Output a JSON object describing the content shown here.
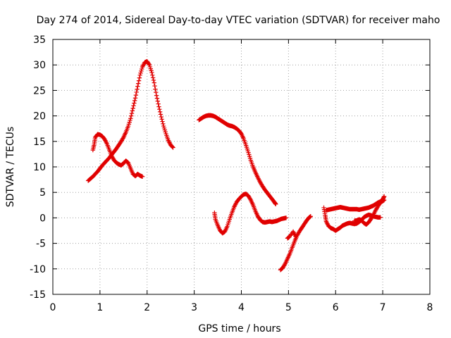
{
  "chart_data": {
    "type": "scatter",
    "title": "Day 274 of 2014, Sidereal Day-to-day VTEC variation (SDTVAR) for receiver maho",
    "xlabel": "GPS time / hours",
    "ylabel": "SDTVAR / TECUs",
    "xlim": [
      0,
      8
    ],
    "ylim": [
      -15,
      35
    ],
    "xticks": [
      0,
      1,
      2,
      3,
      4,
      5,
      6,
      7,
      8
    ],
    "yticks": [
      -15,
      -10,
      -5,
      0,
      5,
      10,
      15,
      20,
      25,
      30,
      35
    ],
    "x_tick_labels": [
      "0",
      "1",
      "2",
      "3",
      "4",
      "5",
      "6",
      "7",
      "8"
    ],
    "y_tick_labels": [
      "-15",
      "-10",
      "-5",
      "0",
      "5",
      "10",
      "15",
      "20",
      "25",
      "30",
      "35"
    ],
    "grid": true,
    "marker": "+",
    "marker_color": "#e00000",
    "series": [
      {
        "segments": [
          [
            [
              0.75,
              7.3
            ],
            [
              0.8,
              7.7
            ],
            [
              0.85,
              8.1
            ],
            [
              0.9,
              8.6
            ],
            [
              0.95,
              9.1
            ],
            [
              1.0,
              9.7
            ],
            [
              1.05,
              10.3
            ],
            [
              1.1,
              10.8
            ],
            [
              1.15,
              11.3
            ],
            [
              1.2,
              11.8
            ],
            [
              1.25,
              12.4
            ],
            [
              1.3,
              13.0
            ],
            [
              1.35,
              13.6
            ],
            [
              1.4,
              14.3
            ],
            [
              1.45,
              15.0
            ],
            [
              1.5,
              15.8
            ],
            [
              1.55,
              16.8
            ],
            [
              1.6,
              18.0
            ],
            [
              1.65,
              19.5
            ],
            [
              1.7,
              21.5
            ],
            [
              1.75,
              23.5
            ],
            [
              1.8,
              25.8
            ],
            [
              1.85,
              28.0
            ],
            [
              1.9,
              29.6
            ],
            [
              1.95,
              30.5
            ],
            [
              2.0,
              30.7
            ],
            [
              2.05,
              30.0
            ],
            [
              2.1,
              28.5
            ],
            [
              2.15,
              26.5
            ],
            [
              2.2,
              24.0
            ],
            [
              2.25,
              21.8
            ],
            [
              2.3,
              19.8
            ],
            [
              2.35,
              18.0
            ],
            [
              2.4,
              16.5
            ],
            [
              2.45,
              15.2
            ],
            [
              2.5,
              14.3
            ],
            [
              2.55,
              13.8
            ]
          ],
          [
            [
              0.85,
              13.3
            ],
            [
              0.88,
              14.5
            ],
            [
              0.9,
              15.8
            ],
            [
              0.95,
              16.4
            ],
            [
              1.0,
              16.3
            ],
            [
              1.05,
              16.0
            ],
            [
              1.1,
              15.4
            ],
            [
              1.15,
              14.5
            ],
            [
              1.2,
              13.3
            ],
            [
              1.25,
              12.1
            ],
            [
              1.3,
              11.3
            ],
            [
              1.35,
              10.8
            ],
            [
              1.4,
              10.5
            ],
            [
              1.45,
              10.3
            ],
            [
              1.5,
              10.7
            ],
            [
              1.55,
              11.2
            ],
            [
              1.6,
              10.8
            ],
            [
              1.65,
              9.7
            ],
            [
              1.7,
              8.6
            ],
            [
              1.75,
              8.2
            ],
            [
              1.8,
              8.6
            ],
            [
              1.85,
              8.3
            ],
            [
              1.9,
              8.1
            ]
          ],
          [
            [
              3.1,
              19.2
            ],
            [
              3.15,
              19.5
            ],
            [
              3.2,
              19.8
            ],
            [
              3.25,
              20.0
            ],
            [
              3.3,
              20.1
            ],
            [
              3.35,
              20.1
            ],
            [
              3.4,
              20.0
            ],
            [
              3.45,
              19.8
            ],
            [
              3.5,
              19.5
            ],
            [
              3.55,
              19.2
            ],
            [
              3.6,
              18.9
            ],
            [
              3.65,
              18.6
            ],
            [
              3.7,
              18.3
            ],
            [
              3.75,
              18.1
            ],
            [
              3.8,
              18.0
            ],
            [
              3.85,
              17.8
            ],
            [
              3.9,
              17.5
            ],
            [
              3.95,
              17.1
            ],
            [
              4.0,
              16.5
            ],
            [
              4.05,
              15.5
            ],
            [
              4.1,
              14.2
            ],
            [
              4.15,
              12.8
            ],
            [
              4.2,
              11.3
            ],
            [
              4.25,
              10.0
            ],
            [
              4.3,
              8.9
            ],
            [
              4.35,
              7.9
            ],
            [
              4.4,
              7.0
            ],
            [
              4.45,
              6.2
            ],
            [
              4.5,
              5.5
            ],
            [
              4.55,
              4.9
            ],
            [
              4.6,
              4.3
            ],
            [
              4.65,
              3.7
            ],
            [
              4.7,
              3.1
            ],
            [
              4.73,
              2.7
            ]
          ],
          [
            [
              3.43,
              1.0
            ],
            [
              3.45,
              -0.3
            ],
            [
              3.5,
              -1.5
            ],
            [
              3.55,
              -2.5
            ],
            [
              3.6,
              -3.0
            ],
            [
              3.65,
              -2.7
            ],
            [
              3.7,
              -1.7
            ],
            [
              3.75,
              -0.3
            ],
            [
              3.8,
              1.0
            ],
            [
              3.85,
              2.2
            ],
            [
              3.9,
              3.1
            ],
            [
              3.95,
              3.7
            ],
            [
              4.0,
              4.2
            ],
            [
              4.05,
              4.6
            ],
            [
              4.1,
              4.7
            ],
            [
              4.15,
              4.3
            ],
            [
              4.2,
              3.5
            ],
            [
              4.25,
              2.5
            ],
            [
              4.3,
              1.3
            ],
            [
              4.35,
              0.3
            ],
            [
              4.4,
              -0.4
            ],
            [
              4.45,
              -0.8
            ],
            [
              4.5,
              -0.9
            ],
            [
              4.55,
              -0.8
            ],
            [
              4.6,
              -0.7
            ],
            [
              4.65,
              -0.8
            ],
            [
              4.7,
              -0.7
            ],
            [
              4.75,
              -0.6
            ],
            [
              4.8,
              -0.4
            ],
            [
              4.85,
              -0.2
            ],
            [
              4.9,
              -0.1
            ],
            [
              4.95,
              0.0
            ]
          ],
          [
            [
              4.83,
              -10.2
            ],
            [
              4.88,
              -9.8
            ],
            [
              4.93,
              -9.0
            ],
            [
              4.98,
              -8.0
            ],
            [
              5.03,
              -7.0
            ],
            [
              5.08,
              -5.8
            ],
            [
              5.13,
              -4.6
            ],
            [
              5.18,
              -3.5
            ],
            [
              5.23,
              -2.7
            ],
            [
              5.28,
              -2.0
            ],
            [
              5.33,
              -1.3
            ],
            [
              5.38,
              -0.6
            ],
            [
              5.43,
              0.0
            ],
            [
              5.47,
              0.3
            ]
          ],
          [
            [
              5.75,
              2.0
            ],
            [
              5.78,
              0.5
            ],
            [
              5.8,
              -0.7
            ],
            [
              5.85,
              -1.6
            ],
            [
              5.9,
              -2.0
            ],
            [
              5.95,
              -2.2
            ],
            [
              6.0,
              -2.5
            ],
            [
              6.05,
              -2.2
            ],
            [
              6.1,
              -1.9
            ],
            [
              6.15,
              -1.5
            ],
            [
              6.2,
              -1.3
            ],
            [
              6.25,
              -1.1
            ],
            [
              6.3,
              -1.0
            ],
            [
              6.35,
              -1.1
            ],
            [
              6.4,
              -1.2
            ],
            [
              6.45,
              -1.1
            ],
            [
              6.5,
              -0.8
            ],
            [
              6.55,
              -0.4
            ],
            [
              6.6,
              0.1
            ],
            [
              6.65,
              0.4
            ],
            [
              6.7,
              0.6
            ],
            [
              6.75,
              0.5
            ],
            [
              6.8,
              0.3
            ],
            [
              6.85,
              0.2
            ],
            [
              6.9,
              0.1
            ],
            [
              6.95,
              0.1
            ]
          ],
          [
            [
              5.8,
              1.5
            ],
            [
              5.85,
              1.6
            ],
            [
              5.9,
              1.7
            ],
            [
              5.95,
              1.8
            ],
            [
              6.0,
              1.9
            ],
            [
              6.05,
              2.0
            ],
            [
              6.1,
              2.1
            ],
            [
              6.15,
              2.0
            ],
            [
              6.2,
              1.9
            ],
            [
              6.25,
              1.8
            ],
            [
              6.3,
              1.7
            ],
            [
              6.35,
              1.7
            ],
            [
              6.4,
              1.7
            ],
            [
              6.45,
              1.7
            ],
            [
              6.5,
              1.6
            ],
            [
              6.55,
              1.7
            ],
            [
              6.6,
              1.8
            ],
            [
              6.65,
              1.9
            ],
            [
              6.7,
              2.0
            ],
            [
              6.75,
              2.2
            ],
            [
              6.8,
              2.4
            ],
            [
              6.85,
              2.7
            ],
            [
              6.9,
              3.0
            ],
            [
              6.95,
              3.2
            ],
            [
              7.0,
              3.6
            ],
            [
              7.03,
              4.2
            ]
          ],
          [
            [
              6.4,
              -0.6
            ],
            [
              6.45,
              -0.5
            ],
            [
              6.5,
              -0.3
            ],
            [
              6.55,
              -0.5
            ],
            [
              6.6,
              -1.0
            ],
            [
              6.65,
              -1.3
            ],
            [
              6.7,
              -0.9
            ],
            [
              6.75,
              -0.2
            ],
            [
              6.8,
              0.6
            ],
            [
              6.85,
              1.5
            ],
            [
              6.9,
              2.3
            ],
            [
              6.95,
              3.0
            ],
            [
              7.0,
              3.3
            ],
            [
              7.03,
              3.5
            ]
          ],
          [
            [
              4.98,
              -4.0
            ],
            [
              5.02,
              -3.7
            ],
            [
              5.1,
              -2.7
            ],
            [
              5.15,
              -3.6
            ]
          ]
        ]
      }
    ]
  }
}
